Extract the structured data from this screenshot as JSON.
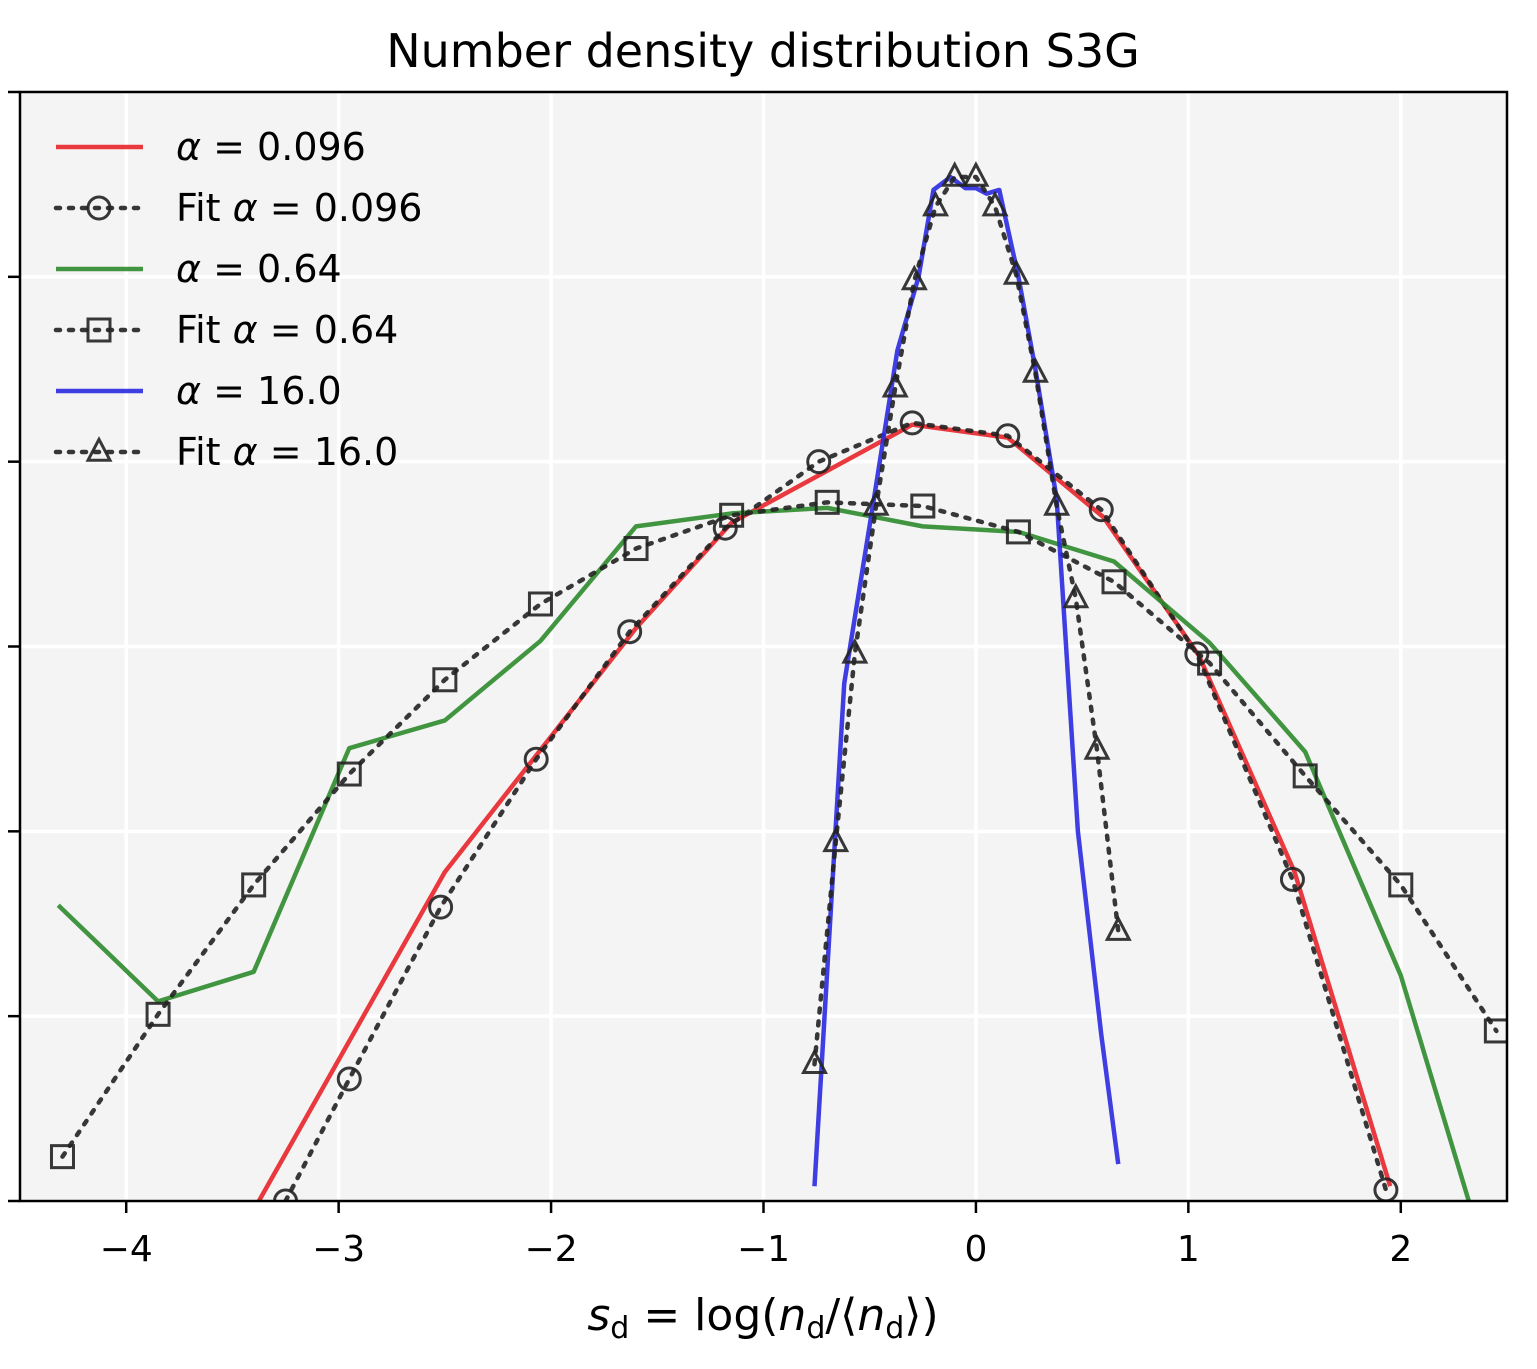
{
  "chart_data": {
    "type": "line",
    "title": "Number density distribution S3G",
    "xlabel": "s_d = log(n_d/⟨n_d⟩)",
    "xlabel_parts": {
      "main": "s",
      "sub1": "d",
      "eq": " = log(",
      "n1": "n",
      "sub2": "d",
      "mid": "/⟨",
      "n2": "n",
      "sub3": "d",
      "end": "⟩)"
    },
    "ylabel": "",
    "xlim": [
      -4.5,
      2.5
    ],
    "ylim": [
      0,
      6
    ],
    "x_ticks": [
      -4,
      -3,
      -2,
      -1,
      0,
      1,
      2
    ],
    "x_tick_labels": [
      "−4",
      "−3",
      "−2",
      "−1",
      "0",
      "1",
      "2"
    ],
    "y_ticks": [
      0,
      1,
      2,
      3,
      4,
      5,
      6
    ],
    "grid": true,
    "background": "#f4f4f4",
    "legend": {
      "location": "top-left"
    },
    "series": [
      {
        "name": "α = 0.096",
        "label_prefix": "",
        "style": "solid",
        "color": "#e8252a",
        "x": [
          -3.4,
          -2.5,
          -1.6,
          -1.15,
          -0.3,
          0.15,
          0.6,
          1.05,
          1.5,
          1.95
        ],
        "y": [
          -0.05,
          1.78,
          3.1,
          3.67,
          4.2,
          4.13,
          3.7,
          2.95,
          1.78,
          0.08
        ]
      },
      {
        "name": "Fit α = 0.096",
        "label_prefix": "Fit ",
        "style": "dotted",
        "marker": "circle",
        "color": "#222222",
        "x": [
          -3.25,
          -2.95,
          -2.52,
          -2.07,
          -1.63,
          -1.18,
          -0.74,
          -0.3,
          0.15,
          0.59,
          1.04,
          1.49,
          1.93
        ],
        "y": [
          0.0,
          0.66,
          1.59,
          2.39,
          3.08,
          3.64,
          4.0,
          4.21,
          4.14,
          3.74,
          2.96,
          1.74,
          0.06
        ]
      },
      {
        "name": "α = 0.64",
        "label_prefix": "",
        "style": "solid",
        "color": "#2e8b2e",
        "x": [
          -4.32,
          -3.85,
          -3.4,
          -2.95,
          -2.5,
          -2.05,
          -1.6,
          -1.15,
          -0.7,
          -0.25,
          0.2,
          0.65,
          1.1,
          1.55,
          2.0,
          2.32
        ],
        "y": [
          1.6,
          1.08,
          1.24,
          2.45,
          2.6,
          3.03,
          3.65,
          3.72,
          3.75,
          3.65,
          3.62,
          3.46,
          3.02,
          2.43,
          1.22,
          0.0
        ]
      },
      {
        "name": "Fit α = 0.64",
        "label_prefix": "Fit ",
        "style": "dotted",
        "marker": "square",
        "color": "#222222",
        "x": [
          -4.3,
          -3.85,
          -3.4,
          -2.95,
          -2.5,
          -2.05,
          -1.6,
          -1.15,
          -0.7,
          -0.25,
          0.2,
          0.65,
          1.1,
          1.55,
          2.0,
          2.45
        ],
        "y": [
          0.24,
          1.01,
          1.71,
          2.31,
          2.82,
          3.23,
          3.53,
          3.71,
          3.78,
          3.76,
          3.62,
          3.35,
          2.91,
          2.3,
          1.71,
          0.92
        ]
      },
      {
        "name": "α = 16.0",
        "label_prefix": "",
        "style": "solid",
        "color": "#2a2ae0",
        "x": [
          -0.76,
          -0.62,
          -0.48,
          -0.37,
          -0.27,
          -0.2,
          -0.12,
          -0.05,
          0.0,
          0.05,
          0.11,
          0.2,
          0.28,
          0.38,
          0.48,
          0.59,
          0.67
        ],
        "y": [
          0.08,
          2.8,
          3.8,
          4.6,
          5.0,
          5.47,
          5.54,
          5.48,
          5.48,
          5.45,
          5.47,
          5.0,
          4.5,
          3.8,
          2.0,
          0.9,
          0.2
        ]
      },
      {
        "name": "Fit α = 16.0",
        "label_prefix": "Fit ",
        "style": "dotted",
        "marker": "triangle",
        "color": "#222222",
        "x": [
          -0.76,
          -0.66,
          -0.57,
          -0.47,
          -0.38,
          -0.29,
          -0.19,
          -0.1,
          0.0,
          0.09,
          0.19,
          0.28,
          0.38,
          0.47,
          0.57,
          0.67
        ],
        "y": [
          0.74,
          1.94,
          2.96,
          3.76,
          4.4,
          4.98,
          5.38,
          5.54,
          5.54,
          5.38,
          5.01,
          4.48,
          3.76,
          3.26,
          2.44,
          1.46
        ]
      }
    ]
  }
}
